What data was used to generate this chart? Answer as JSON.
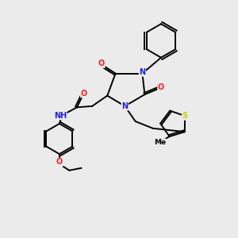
{
  "bg_color": "#ebebeb",
  "atom_colors": {
    "N": "#2020dd",
    "O": "#ff2020",
    "S": "#cccc00",
    "H": "#7090a0",
    "C": "#000000"
  },
  "font_size_atom": 7.0,
  "line_width": 1.4
}
